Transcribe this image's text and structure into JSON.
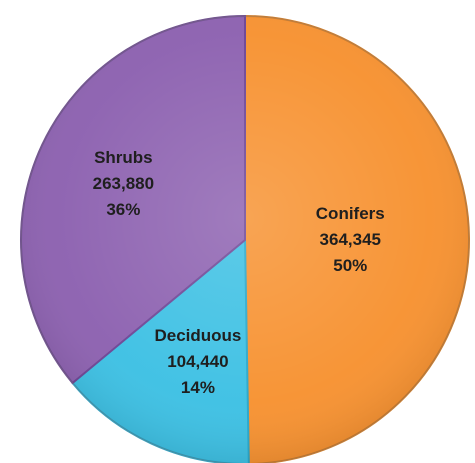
{
  "chart_data": {
    "type": "pie",
    "title": "",
    "start_angle_deg": 0,
    "direction": "clockwise",
    "slices": [
      {
        "name": "Conifers",
        "value_label": "364,345",
        "percent_label": "50%",
        "value": 364345,
        "color": "#F79333",
        "edge_color": "#E07F1E"
      },
      {
        "name": "Deciduous",
        "value_label": "104,440",
        "percent_label": "14%",
        "value": 104440,
        "color": "#3FC1E4",
        "edge_color": "#2AA8CC"
      },
      {
        "name": "Shrubs",
        "value_label": "263,880",
        "percent_label": "36%",
        "value": 263880,
        "color": "#8E63B1",
        "edge_color": "#6F4796"
      }
    ]
  }
}
